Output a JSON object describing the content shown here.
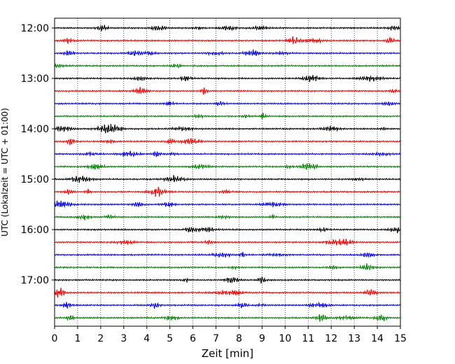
{
  "chart_data": {
    "type": "line",
    "title": "",
    "xlabel": "Zeit  [min]",
    "ylabel": "UTC (Lokalzeit = UTC + 01:00)",
    "xlim": [
      0,
      15
    ],
    "x_ticks": [
      0,
      1,
      2,
      3,
      4,
      5,
      6,
      7,
      8,
      9,
      10,
      11,
      12,
      13,
      14,
      15
    ],
    "x_tick_labels": [
      "0",
      "1",
      "2",
      "3",
      "4",
      "5",
      "6",
      "7",
      "8",
      "9",
      "10",
      "11",
      "12",
      "13",
      "14",
      "15"
    ],
    "grid": "vertical dotted",
    "y_tick_labels": [
      "12:00",
      "13:00",
      "14:00",
      "15:00",
      "16:00",
      "17:00"
    ],
    "y_tick_trace_index": [
      0,
      4,
      8,
      12,
      16,
      20
    ],
    "trace_count": 24,
    "trace_colors": [
      "#000000",
      "#ff0000",
      "#0000ff",
      "#008000"
    ],
    "trace_interval_minutes": 15
  }
}
